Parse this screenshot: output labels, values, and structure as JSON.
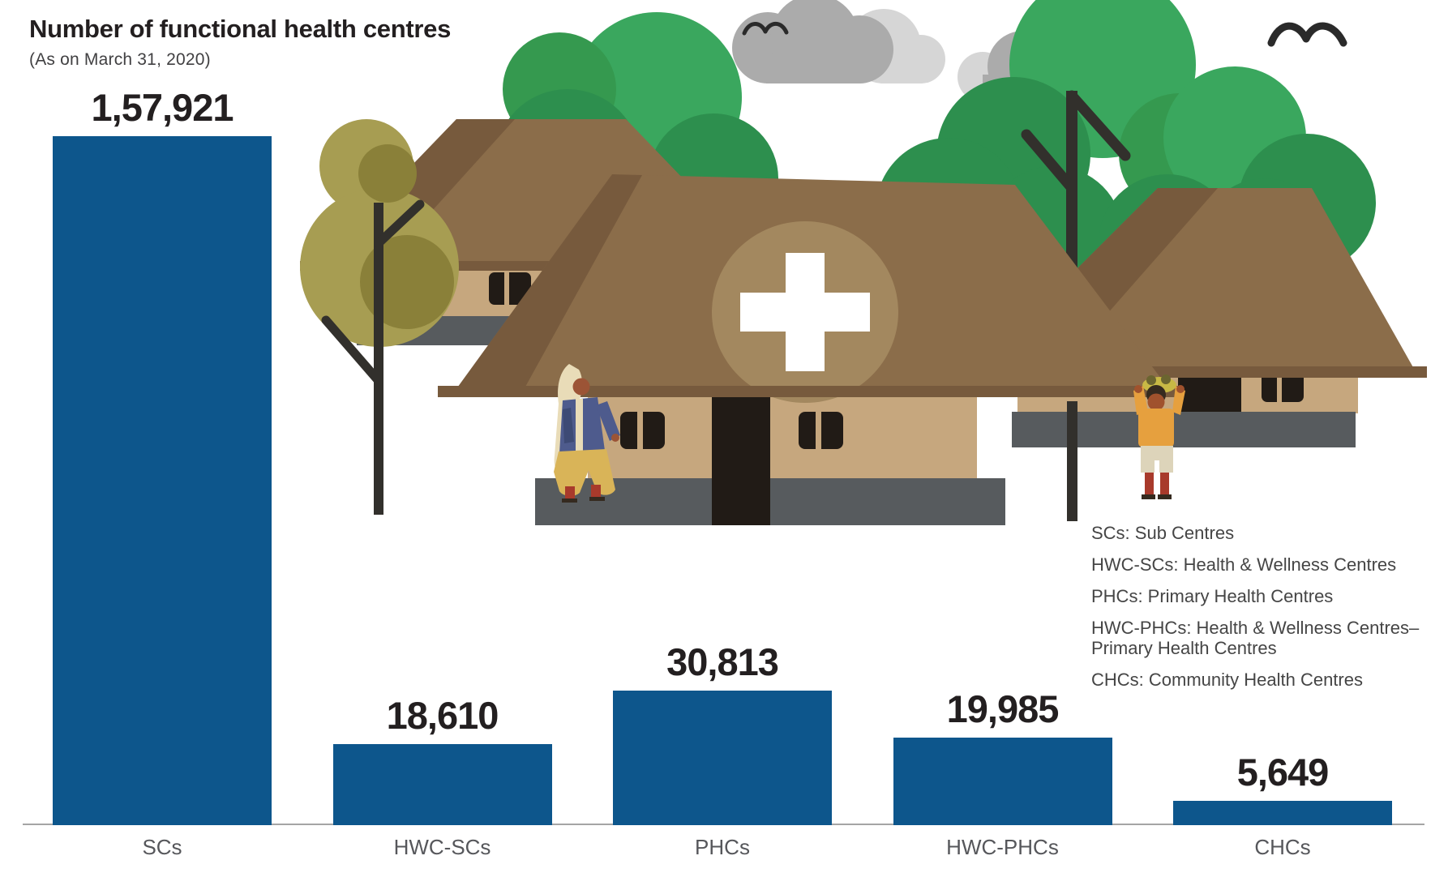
{
  "header": {
    "title": "Number of functional health centres",
    "subtitle": "(As on March 31, 2020)"
  },
  "chart_data": {
    "type": "bar",
    "title": "Number of functional health centres",
    "subtitle": "(As on March 31, 2020)",
    "categories": [
      "SCs",
      "HWC-SCs",
      "PHCs",
      "HWC-PHCs",
      "CHCs"
    ],
    "values": [
      157921,
      18610,
      30813,
      19985,
      5649
    ],
    "value_labels": [
      "1,57,921",
      "18,610",
      "30,813",
      "19,985",
      "5,649"
    ],
    "xlabel": "",
    "ylabel": "",
    "ylim": [
      0,
      157921
    ],
    "grid": false,
    "bar_color": "#0d568c",
    "legend_position": "middle-right",
    "number_format": "Indian digit grouping"
  },
  "legend": {
    "items": [
      "SCs: Sub Centres",
      "HWC-SCs: Health & Wellness Centres",
      "PHCs: Primary Health Centres",
      "HWC-PHCs: Health & Wellness Centres–Primary Health Centres",
      "CHCs: Community Health Centres"
    ]
  },
  "illustration": {
    "description": "rural village health centre scene",
    "icons": [
      "cloud-icon",
      "bird-icon",
      "tree-icon",
      "hut-icon",
      "health-cross-icon",
      "person-walking-icon",
      "person-carrying-icon"
    ]
  },
  "colors": {
    "bar": "#0d568c",
    "text": "#231f20",
    "muted": "#414042",
    "axis": "#56575b",
    "legend": "#454545",
    "baseline": "#a5a5a5",
    "green1": "#3aa75e",
    "green2": "#2d8f4e",
    "green3": "#35994f",
    "olive1": "#a79d52",
    "olive2": "#8a8039",
    "trunk": "#32302c",
    "roof1": "#8b6d4a",
    "roof2": "#775a3d",
    "emblem": "#a3885f",
    "wall": "#c6a77e",
    "plinth": "#575b5e",
    "dark": "#211b16",
    "cloud1": "#ababab",
    "cloud2": "#d6d6d6",
    "bird": "#2a2a2a",
    "cross": "#ffffff",
    "skin1": "#9c5436",
    "skin2": "#a0522d",
    "veil": "#e9dcb8",
    "jacket": "#4e5b8d",
    "jacket2": "#3d4a75",
    "skirt": "#d9b458",
    "boot": "#a83a2b",
    "shirt": "#e6a03e",
    "shorts": "#ddd4ba",
    "hair": "#352a1f",
    "bundle": "#c8b945",
    "bundle2": "#6b6530"
  }
}
